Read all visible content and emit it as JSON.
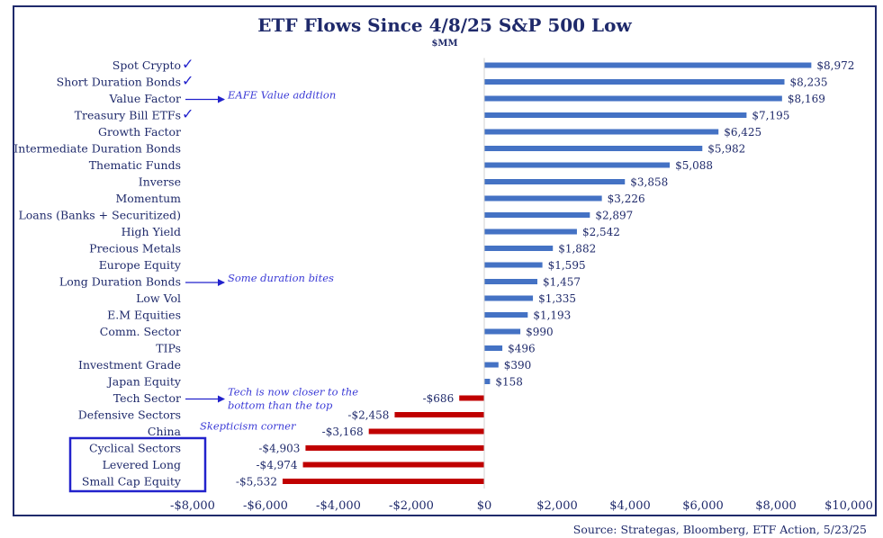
{
  "chart_data": {
    "type": "bar",
    "orientation": "horizontal",
    "title": "ETF Flows Since 4/8/25 S&P 500 Low",
    "subtitle": "$MM",
    "xlim": [
      -8000,
      10000
    ],
    "x_ticks": [
      -8000,
      -6000,
      -4000,
      -2000,
      0,
      2000,
      4000,
      6000,
      8000,
      10000
    ],
    "x_tick_labels": [
      "-$8,000",
      "-$6,000",
      "-$4,000",
      "-$2,000",
      "$0",
      "$2,000",
      "$4,000",
      "$6,000",
      "$8,000",
      "$10,000"
    ],
    "positive_color": "#4472c4",
    "negative_color": "#c00000",
    "categories": [
      "Spot Crypto",
      "Short Duration Bonds",
      "Value Factor",
      "Treasury Bill ETFs",
      "Growth Factor",
      "Intermediate Duration Bonds",
      "Thematic Funds",
      "Inverse",
      "Momentum",
      "Loans (Banks + Securitized)",
      "High Yield",
      "Precious Metals",
      "Europe Equity",
      "Long Duration Bonds",
      "Low Vol",
      "E.M Equities",
      "Comm. Sector",
      "TIPs",
      "Investment Grade",
      "Japan Equity",
      "Tech Sector",
      "Defensive Sectors",
      "China",
      "Cyclical Sectors",
      "Levered Long",
      "Small Cap Equity"
    ],
    "values": [
      8972,
      8235,
      8169,
      7195,
      6425,
      5982,
      5088,
      3858,
      3226,
      2897,
      2542,
      1882,
      1595,
      1457,
      1335,
      1193,
      990,
      496,
      390,
      158,
      -686,
      -2458,
      -3168,
      -4903,
      -4974,
      -5532
    ],
    "value_labels": [
      "$8,972",
      "$8,235",
      "$8,169",
      "$7,195",
      "$6,425",
      "$5,982",
      "$5,088",
      "$3,858",
      "$3,226",
      "$2,897",
      "$2,542",
      "$1,882",
      "$1,595",
      "$1,457",
      "$1,335",
      "$1,193",
      "$990",
      "$496",
      "$390",
      "$158",
      "-$686",
      "-$2,458",
      "-$3,168",
      "-$4,903",
      "-$4,974",
      "-$5,532"
    ],
    "checkmarks": [
      "Spot Crypto",
      "Short Duration Bonds",
      "Treasury Bill ETFs"
    ],
    "annotations": [
      {
        "category": "Value Factor",
        "lines": [
          "EAFE Value addition"
        ],
        "arrow": true
      },
      {
        "category": "Long Duration Bonds",
        "lines": [
          "Some duration bites"
        ],
        "arrow": true
      },
      {
        "category": "Tech Sector",
        "lines": [
          "Tech is now closer to the",
          "bottom than the top"
        ],
        "arrow": true
      },
      {
        "category": "China",
        "lines": [
          "Skepticism corner"
        ],
        "arrow": false
      }
    ],
    "highlight_box": [
      "Cyclical Sectors",
      "Levered Long",
      "Small Cap Equity"
    ],
    "highlight_color": "#2222cc",
    "source": "Source: Strategas, Bloomberg, ETF Action, 5/23/25"
  }
}
